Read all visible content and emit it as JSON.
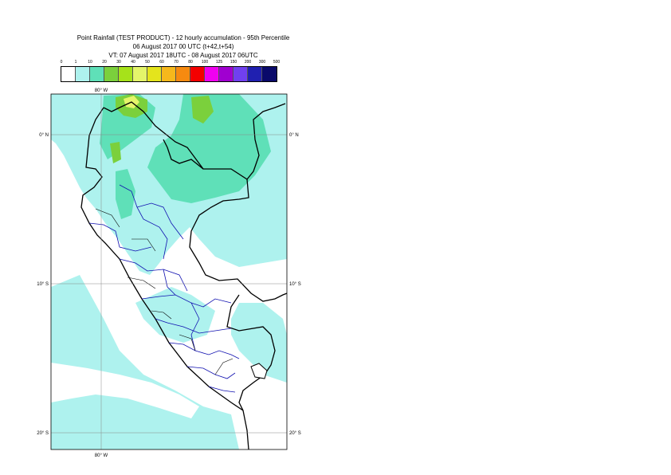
{
  "title": {
    "line1": "Point Rainfall (TEST PRODUCT) - 12 hourly accumulation - 95th Percentile",
    "line2": "06 August 2017 00 UTC (t+42,t+54)",
    "line3": "VT: 07 August 2017 18UTC - 08 August 2017 06UTC"
  },
  "legend": {
    "thresholds": [
      "0",
      "1",
      "10",
      "20",
      "30",
      "40",
      "50",
      "60",
      "70",
      "80",
      "100",
      "125",
      "150",
      "200",
      "300",
      "500"
    ],
    "colors": [
      "#ffffff",
      "#aef2ee",
      "#5fe0b8",
      "#7bd03c",
      "#a6e21a",
      "#e4f56a",
      "#e4e41c",
      "#f6b81c",
      "#f68a10",
      "#f40000",
      "#f000f0",
      "#a000d0",
      "#7040f0",
      "#2020b0",
      "#0a0a6a"
    ]
  },
  "map": {
    "lon_label_top": "80° W",
    "lon_label_bottom": "80° W",
    "lat_labels_left": [
      "0° N",
      "10° S",
      "20° S"
    ],
    "lat_labels_right": [
      "0° N",
      "10° S",
      "20° S"
    ]
  }
}
